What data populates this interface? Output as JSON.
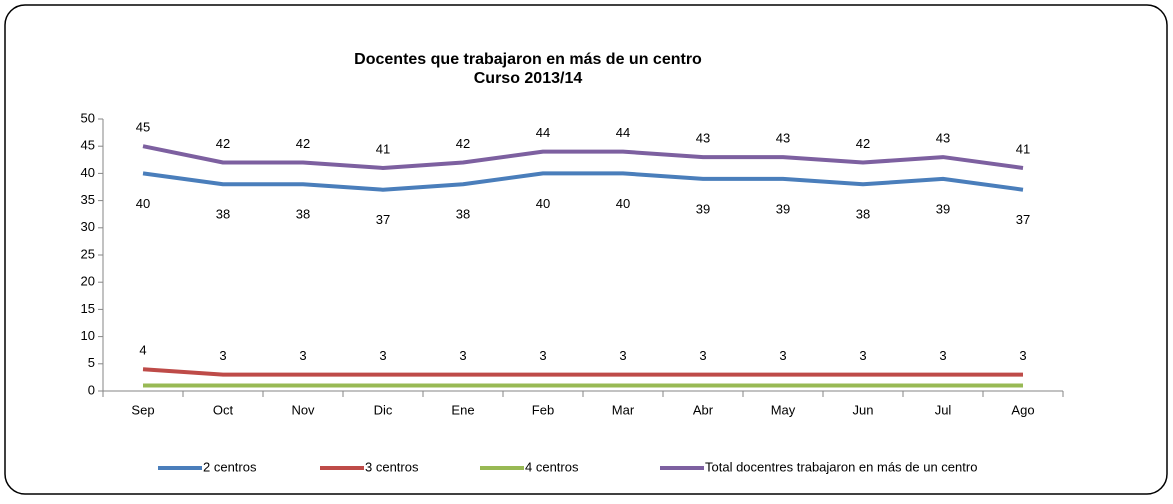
{
  "chart_data": {
    "type": "line",
    "title": "Docentes que trabajaron en más de un centro",
    "subtitle": "Curso 2013/14",
    "categories": [
      "Sep",
      "Oct",
      "Nov",
      "Dic",
      "Ene",
      "Feb",
      "Mar",
      "Abr",
      "May",
      "Jun",
      "Jul",
      "Ago"
    ],
    "series": [
      {
        "name": "2 centros",
        "color": "#4a7ebb",
        "data_labels": "below",
        "values": [
          40,
          38,
          38,
          37,
          38,
          40,
          40,
          39,
          39,
          38,
          39,
          37
        ]
      },
      {
        "name": "3 centros",
        "color": "#be4b48",
        "data_labels": "above",
        "values": [
          4,
          3,
          3,
          3,
          3,
          3,
          3,
          3,
          3,
          3,
          3,
          3
        ]
      },
      {
        "name": "4 centros",
        "color": "#98b954",
        "data_labels": "none",
        "values": [
          1,
          1,
          1,
          1,
          1,
          1,
          1,
          1,
          1,
          1,
          1,
          1
        ]
      },
      {
        "name": "Total docentres trabajaron en más de un centro",
        "color": "#7d60a0",
        "data_labels": "above",
        "values": [
          45,
          42,
          42,
          41,
          42,
          44,
          44,
          43,
          43,
          42,
          43,
          41
        ]
      }
    ],
    "ylim": [
      0,
      50
    ],
    "yticks": [
      0,
      5,
      10,
      15,
      20,
      25,
      30,
      35,
      40,
      45,
      50
    ],
    "grid": false,
    "legend": "bottom"
  }
}
